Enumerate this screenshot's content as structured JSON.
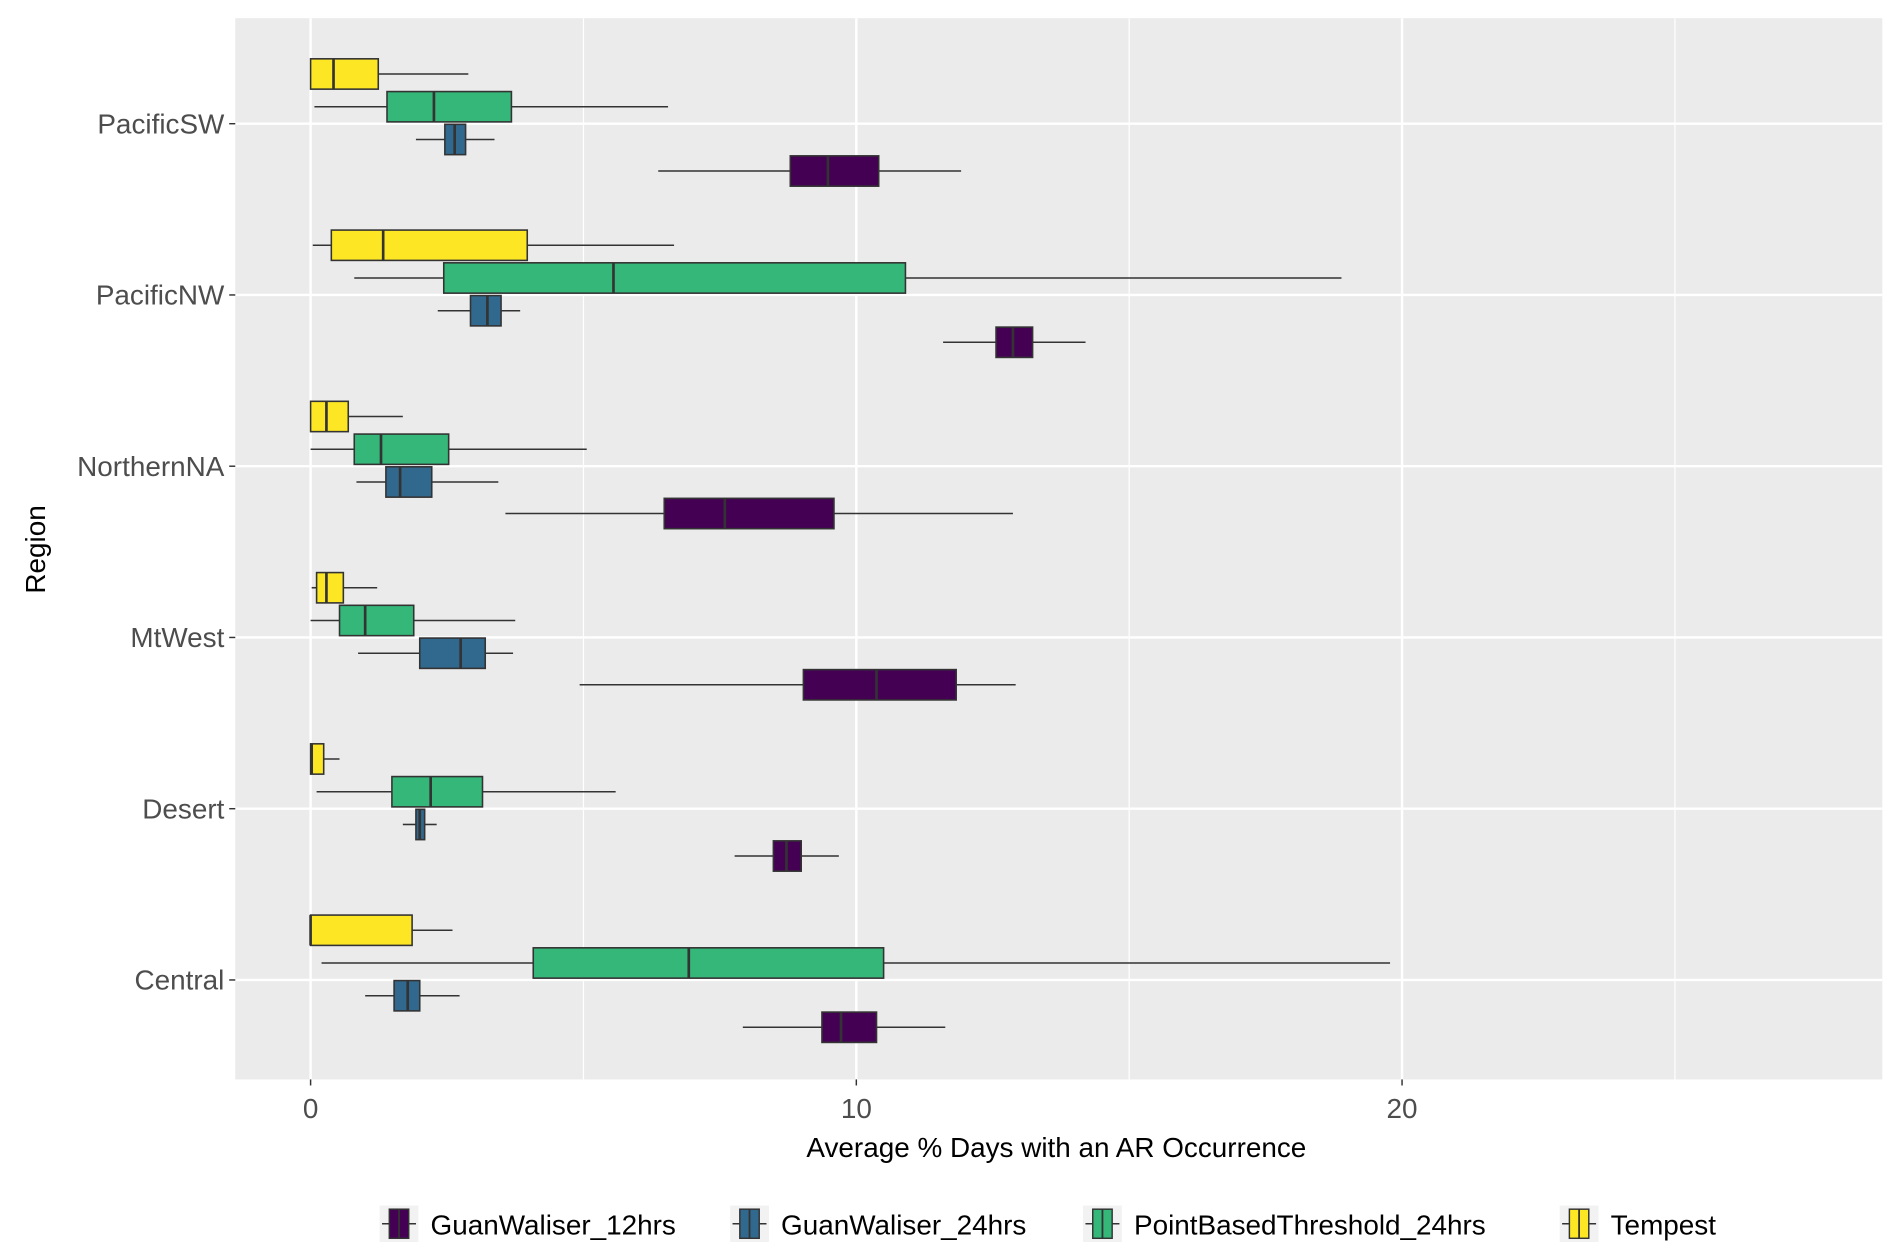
{
  "chart_data": {
    "type": "boxplot",
    "orientation": "horizontal",
    "title": "",
    "xlabel": "Average % Days with an AR Occurrence",
    "ylabel": "Region",
    "xlim": [
      -1.38,
      28.8
    ],
    "xticks": [
      0,
      10,
      20
    ],
    "xtick_labels": [
      "0",
      "10",
      "20"
    ],
    "grid": true,
    "legend_position": "bottom",
    "categories": [
      "PacificSW",
      "PacificNW",
      "NorthernNA",
      "MtWest",
      "Desert",
      "Central"
    ],
    "series": [
      {
        "name": "GuanWaliser_12hrs",
        "color": "#440154",
        "boxes": [
          [
            6.37,
            8.79,
            9.48,
            10.41,
            11.92
          ],
          [
            11.59,
            12.56,
            12.87,
            13.23,
            14.2
          ],
          [
            3.57,
            6.48,
            7.59,
            9.59,
            12.87
          ],
          [
            4.93,
            9.03,
            10.37,
            11.83,
            12.92
          ],
          [
            7.77,
            8.48,
            8.72,
            8.99,
            9.68
          ],
          [
            7.92,
            9.37,
            9.72,
            10.37,
            11.63
          ]
        ]
      },
      {
        "name": "GuanWaliser_24hrs",
        "color": "#31688E",
        "boxes": [
          [
            1.93,
            2.46,
            2.64,
            2.84,
            3.37
          ],
          [
            2.33,
            2.93,
            3.24,
            3.49,
            3.84
          ],
          [
            0.84,
            1.38,
            1.64,
            2.22,
            3.44
          ],
          [
            0.87,
            2.0,
            2.75,
            3.2,
            3.71
          ],
          [
            1.69,
            1.93,
            2.0,
            2.09,
            2.31
          ],
          [
            1.0,
            1.53,
            1.78,
            2.0,
            2.73
          ]
        ]
      },
      {
        "name": "PointBasedThreshold_24hrs",
        "color": "#35B779",
        "boxes": [
          [
            0.07,
            1.4,
            2.26,
            3.68,
            6.55
          ],
          [
            0.8,
            2.44,
            5.55,
            10.9,
            18.89
          ],
          [
            0,
            0.8,
            1.29,
            2.53,
            5.06
          ],
          [
            0,
            0.53,
            1.0,
            1.89,
            3.75
          ],
          [
            0.11,
            1.49,
            2.2,
            3.15,
            5.59
          ],
          [
            0.2,
            4.08,
            6.93,
            10.5,
            19.78
          ]
        ]
      },
      {
        "name": "Tempest",
        "color": "#FDE725",
        "boxes": [
          [
            0,
            0,
            0.42,
            1.24,
            2.89
          ],
          [
            0.04,
            0.38,
            1.33,
            3.97,
            6.66
          ],
          [
            0,
            0,
            0.29,
            0.69,
            1.69
          ],
          [
            0.02,
            0.11,
            0.29,
            0.6,
            1.22
          ],
          [
            0,
            0,
            0.02,
            0.24,
            0.53
          ],
          [
            0,
            0,
            0,
            1.86,
            2.6
          ]
        ]
      }
    ],
    "box_stat_order": [
      "whisker_low",
      "q1",
      "median",
      "q3",
      "whisker_high"
    ]
  }
}
